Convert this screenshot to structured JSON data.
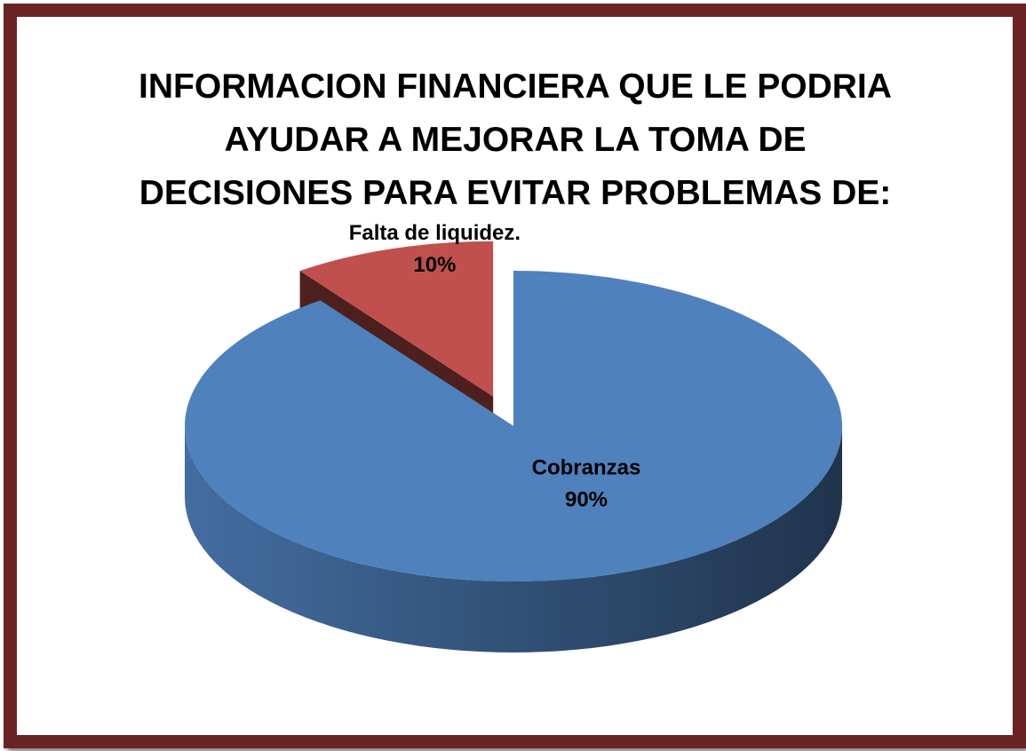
{
  "chart_data": {
    "type": "pie3d",
    "title": "INFORMACION FINANCIERA QUE LE PODRIA AYUDAR A MEJORAR LA TOMA DE DECISIONES PARA EVITAR PROBLEMAS DE:",
    "categories": [
      "Cobranzas",
      "Falta de liquidez."
    ],
    "values": [
      90,
      10
    ],
    "value_labels": [
      "90%",
      "10%"
    ],
    "colors": [
      "#4f81bd",
      "#c0504d"
    ]
  }
}
